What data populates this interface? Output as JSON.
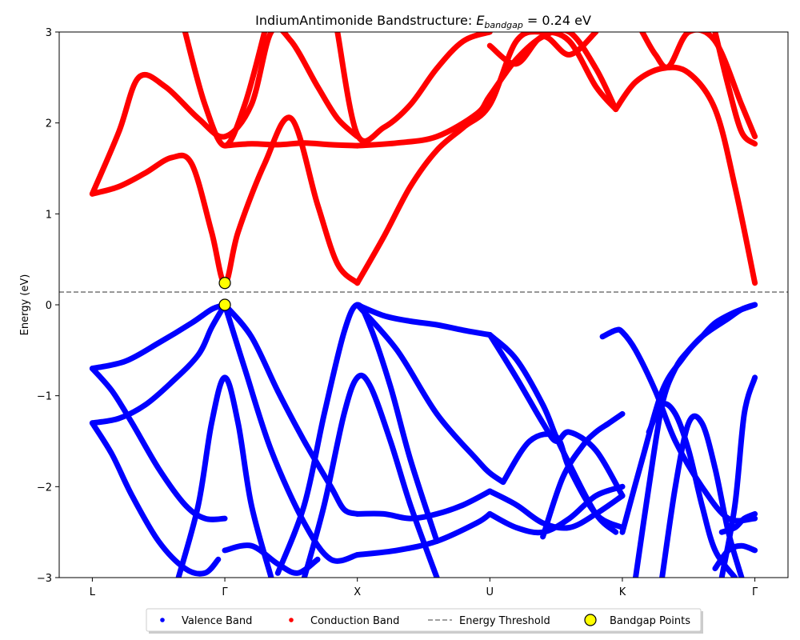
{
  "chart_data": {
    "type": "line",
    "title_main": "IndiumAntimonide Bandstructure: ",
    "title_symbol": "E",
    "title_subscript": "bandgap",
    "title_value": " = 0.24 eV",
    "xlabel": "",
    "ylabel": "Energy (eV)",
    "ylim": [
      -3,
      3
    ],
    "yticks": [
      -3,
      -2,
      -1,
      0,
      1,
      2,
      3
    ],
    "ytick_labels": [
      "−3",
      "−2",
      "−1",
      "0",
      "1",
      "2",
      "3"
    ],
    "xlim": [
      -0.25,
      5.25
    ],
    "kpoint_labels": [
      "L",
      "Γ",
      "X",
      "U",
      "K",
      "Γ"
    ],
    "kpoint_positions": [
      0,
      1,
      2,
      3,
      4,
      5
    ],
    "energy_threshold": 0.14,
    "bandgap_eV": 0.24,
    "bandgap_points": [
      {
        "x": 1,
        "y": 0.24
      },
      {
        "x": 1,
        "y": 0.0
      }
    ],
    "colors": {
      "valence": "#0000ff",
      "conduction": "#ff0000",
      "threshold": "#808080",
      "bandgap_marker": "#ffff00"
    },
    "series": [
      {
        "group": "conduction",
        "x": [
          0,
          0.2,
          0.4,
          0.6,
          0.75,
          0.9,
          1.0,
          1.1,
          1.3,
          1.5,
          1.7,
          1.85,
          2.0
        ],
        "y": [
          1.22,
          1.3,
          1.45,
          1.62,
          1.55,
          0.8,
          0.24,
          0.8,
          1.55,
          2.05,
          1.1,
          0.45,
          0.24
        ]
      },
      {
        "group": "conduction",
        "x": [
          0,
          0.2,
          0.35,
          0.55,
          0.8,
          1.0,
          1.2,
          1.35,
          1.5,
          1.7,
          1.85,
          2.0
        ],
        "y": [
          1.22,
          1.9,
          2.5,
          2.4,
          2.05,
          1.85,
          2.2,
          3.0,
          2.9,
          2.4,
          2.05,
          1.85
        ]
      },
      {
        "group": "conduction",
        "x": [
          0.7,
          0.85,
          1.0,
          1.15,
          1.3
        ],
        "y": [
          3.0,
          2.2,
          1.75,
          2.2,
          3.0
        ]
      },
      {
        "group": "conduction",
        "x": [
          1.0,
          1.2,
          1.4,
          1.6,
          1.8,
          2.0
        ],
        "y": [
          1.75,
          1.77,
          1.76,
          1.78,
          1.76,
          1.75
        ]
      },
      {
        "group": "conduction",
        "x": [
          2.0,
          2.2,
          2.4,
          2.6,
          2.8,
          3.0,
          3.2,
          3.4,
          3.6,
          3.8,
          3.95
        ],
        "y": [
          0.24,
          0.75,
          1.3,
          1.7,
          1.95,
          2.2,
          2.9,
          3.0,
          2.9,
          2.4,
          2.15
        ]
      },
      {
        "group": "conduction",
        "x": [
          2.0,
          2.3,
          2.6,
          2.9,
          3.0,
          3.2,
          3.4,
          3.6,
          3.8,
          3.95
        ],
        "y": [
          1.75,
          1.78,
          1.85,
          2.1,
          2.3,
          2.7,
          2.95,
          3.0,
          2.6,
          2.15
        ]
      },
      {
        "group": "conduction",
        "x": [
          1.85,
          2.0,
          2.2,
          2.4,
          2.6,
          2.8,
          3.0
        ],
        "y": [
          3.0,
          1.87,
          1.95,
          2.2,
          2.6,
          2.9,
          3.0
        ]
      },
      {
        "group": "conduction",
        "x": [
          3.0,
          3.2,
          3.4,
          3.6,
          3.8
        ],
        "y": [
          2.85,
          2.65,
          2.95,
          2.75,
          3.0
        ]
      },
      {
        "group": "conduction",
        "x": [
          3.95,
          4.1,
          4.3,
          4.5,
          4.7,
          4.85,
          5.0
        ],
        "y": [
          2.15,
          2.45,
          2.6,
          2.55,
          2.15,
          1.3,
          0.24
        ]
      },
      {
        "group": "conduction",
        "x": [
          4.15,
          4.25,
          4.35,
          4.5,
          4.7,
          4.9,
          5.0
        ],
        "y": [
          3.0,
          2.75,
          2.62,
          3.0,
          2.9,
          2.2,
          1.85
        ]
      },
      {
        "group": "conduction",
        "x": [
          4.7,
          4.8,
          4.9,
          5.0
        ],
        "y": [
          3.0,
          2.4,
          1.9,
          1.77
        ]
      },
      {
        "group": "valence",
        "x": [
          0,
          0.25,
          0.5,
          0.75,
          0.9,
          1.0
        ],
        "y": [
          -0.7,
          -0.62,
          -0.42,
          -0.2,
          -0.05,
          0.0
        ]
      },
      {
        "group": "valence",
        "x": [
          0,
          0.2,
          0.4,
          0.6,
          0.8,
          0.9,
          1.0
        ],
        "y": [
          -1.3,
          -1.25,
          -1.1,
          -0.85,
          -0.55,
          -0.25,
          0.0
        ]
      },
      {
        "group": "valence",
        "x": [
          0,
          0.15,
          0.3,
          0.5,
          0.7,
          0.85,
          1.0
        ],
        "y": [
          -0.7,
          -0.95,
          -1.3,
          -1.8,
          -2.2,
          -2.35,
          -2.35
        ]
      },
      {
        "group": "valence",
        "x": [
          0,
          0.15,
          0.3,
          0.5,
          0.7,
          0.85,
          0.95
        ],
        "y": [
          -1.3,
          -1.65,
          -2.1,
          -2.6,
          -2.9,
          -2.95,
          -2.8
        ]
      },
      {
        "group": "valence",
        "x": [
          0.65,
          0.8,
          0.9,
          1.0,
          1.1,
          1.2,
          1.35
        ],
        "y": [
          -3.0,
          -2.2,
          -1.3,
          -0.8,
          -1.3,
          -2.2,
          -3.0
        ]
      },
      {
        "group": "valence",
        "x": [
          1.0,
          1.2,
          1.4,
          1.6,
          1.8,
          1.9,
          2.0
        ],
        "y": [
          0.0,
          -0.35,
          -0.95,
          -1.5,
          -2.0,
          -2.25,
          -2.3
        ]
      },
      {
        "group": "valence",
        "x": [
          1.0,
          1.15,
          1.35,
          1.6,
          1.8,
          2.0
        ],
        "y": [
          0.0,
          -0.7,
          -1.6,
          -2.4,
          -2.8,
          -2.75
        ]
      },
      {
        "group": "valence",
        "x": [
          1.0,
          1.2,
          1.4,
          1.55,
          1.7
        ],
        "y": [
          -2.7,
          -2.65,
          -2.85,
          -2.95,
          -2.8
        ]
      },
      {
        "group": "valence",
        "x": [
          1.4,
          1.6,
          1.75,
          1.9,
          2.0,
          2.1,
          2.25,
          2.4,
          2.6
        ],
        "y": [
          -2.95,
          -2.2,
          -1.2,
          -0.3,
          0.0,
          -0.25,
          -0.9,
          -1.7,
          -2.6
        ]
      },
      {
        "group": "valence",
        "x": [
          1.6,
          1.75,
          1.9,
          2.0,
          2.1,
          2.25,
          2.4,
          2.6
        ],
        "y": [
          -3.0,
          -2.2,
          -1.2,
          -0.8,
          -0.9,
          -1.5,
          -2.2,
          -3.0
        ]
      },
      {
        "group": "valence",
        "x": [
          2.0,
          2.2,
          2.4,
          2.6,
          2.8,
          3.0
        ],
        "y": [
          0.0,
          -0.12,
          -0.18,
          -0.22,
          -0.28,
          -0.33
        ]
      },
      {
        "group": "valence",
        "x": [
          2.0,
          2.2,
          2.4,
          2.6,
          2.8,
          3.0
        ],
        "y": [
          -2.3,
          -2.3,
          -2.35,
          -2.3,
          -2.2,
          -2.05
        ]
      },
      {
        "group": "valence",
        "x": [
          2.0,
          2.3,
          2.6,
          2.9,
          3.0
        ],
        "y": [
          -2.75,
          -2.7,
          -2.6,
          -2.4,
          -2.3
        ]
      },
      {
        "group": "valence",
        "x": [
          2.0,
          2.3,
          2.6,
          2.9,
          3.0,
          3.1
        ],
        "y": [
          0.0,
          -0.5,
          -1.2,
          -1.7,
          -1.85,
          -1.95
        ]
      },
      {
        "group": "valence",
        "x": [
          3.0,
          3.2,
          3.4,
          3.5,
          3.6,
          3.8,
          3.95
        ],
        "y": [
          -0.33,
          -0.6,
          -1.1,
          -1.45,
          -1.75,
          -2.3,
          -2.5
        ]
      },
      {
        "group": "valence",
        "x": [
          3.0,
          3.2,
          3.4,
          3.5,
          3.6,
          3.8,
          4.0
        ],
        "y": [
          -0.33,
          -0.8,
          -1.3,
          -1.5,
          -1.4,
          -1.6,
          -2.1
        ]
      },
      {
        "group": "valence",
        "x": [
          3.1,
          3.3,
          3.5,
          3.6,
          3.8,
          4.0
        ],
        "y": [
          -1.95,
          -1.5,
          -1.45,
          -1.8,
          -2.3,
          -2.45
        ]
      },
      {
        "group": "valence",
        "x": [
          3.0,
          3.2,
          3.4,
          3.6,
          3.8,
          4.0
        ],
        "y": [
          -2.05,
          -2.2,
          -2.4,
          -2.45,
          -2.3,
          -2.1
        ]
      },
      {
        "group": "valence",
        "x": [
          3.0,
          3.2,
          3.4,
          3.6,
          3.8,
          4.0
        ],
        "y": [
          -2.3,
          -2.45,
          -2.5,
          -2.35,
          -2.1,
          -2.0
        ]
      },
      {
        "group": "valence",
        "x": [
          3.4,
          3.55,
          3.7,
          3.8,
          3.9,
          4.0
        ],
        "y": [
          -2.55,
          -1.9,
          -1.55,
          -1.4,
          -1.3,
          -1.2
        ]
      },
      {
        "group": "valence",
        "x": [
          3.85,
          3.95,
          4.0,
          4.1,
          4.25,
          4.4,
          4.6,
          4.8,
          5.0
        ],
        "y": [
          -0.35,
          -0.28,
          -0.3,
          -0.5,
          -0.95,
          -1.5,
          -2.0,
          -2.35,
          -2.35
        ]
      },
      {
        "group": "valence",
        "x": [
          4.0,
          4.15,
          4.3,
          4.45,
          4.6,
          4.8,
          4.9,
          5.0
        ],
        "y": [
          -2.5,
          -1.7,
          -0.95,
          -0.6,
          -0.35,
          -0.15,
          -0.05,
          0.0
        ]
      },
      {
        "group": "valence",
        "x": [
          4.1,
          4.2,
          4.3,
          4.4,
          4.5,
          4.6,
          4.7,
          4.85,
          5.0
        ],
        "y": [
          -3.0,
          -2.0,
          -1.1,
          -0.7,
          -0.5,
          -0.35,
          -0.2,
          -0.08,
          0.0
        ]
      },
      {
        "group": "valence",
        "x": [
          4.2,
          4.3,
          4.4,
          4.5,
          4.6,
          4.7,
          4.85
        ],
        "y": [
          -1.4,
          -1.1,
          -1.2,
          -1.6,
          -2.2,
          -2.7,
          -3.0
        ]
      },
      {
        "group": "valence",
        "x": [
          4.3,
          4.4,
          4.5,
          4.6,
          4.7,
          4.8,
          4.9
        ],
        "y": [
          -3.0,
          -2.0,
          -1.3,
          -1.3,
          -1.8,
          -2.5,
          -3.0
        ]
      },
      {
        "group": "valence",
        "x": [
          4.75,
          4.85,
          4.92,
          5.0
        ],
        "y": [
          -3.0,
          -2.2,
          -1.2,
          -0.8
        ]
      },
      {
        "group": "valence",
        "x": [
          4.75,
          4.85,
          4.92,
          5.0
        ],
        "y": [
          -2.5,
          -2.45,
          -2.35,
          -2.3
        ]
      },
      {
        "group": "valence",
        "x": [
          4.7,
          4.8,
          4.9,
          5.0
        ],
        "y": [
          -2.9,
          -2.7,
          -2.65,
          -2.7
        ]
      }
    ]
  },
  "legend": {
    "items": [
      {
        "label": "Valence Band",
        "kind": "dot",
        "color": "#0000ff"
      },
      {
        "label": "Conduction Band",
        "kind": "dot",
        "color": "#ff0000"
      },
      {
        "label": "Energy Threshold",
        "kind": "dash",
        "color": "#808080"
      },
      {
        "label": "Bandgap Points",
        "kind": "circle",
        "color": "#ffff00"
      }
    ]
  }
}
